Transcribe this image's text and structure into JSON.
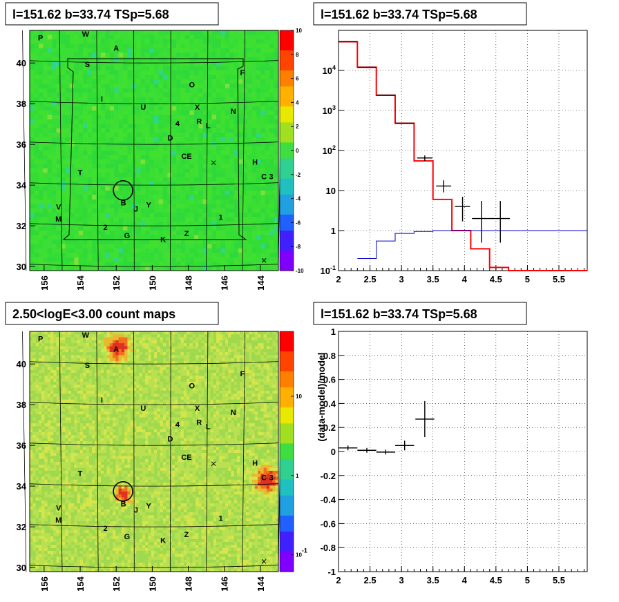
{
  "panels": {
    "tl": {
      "title": "l=151.62 b=33.74 TSp=5.68"
    },
    "tr": {
      "title": "l=151.62 b=33.74 TSp=5.68"
    },
    "bl": {
      "title": "2.50<logE<3.00 count maps"
    },
    "br": {
      "title": "l=151.62 b=33.74 TSp=5.68"
    }
  },
  "colors": {
    "map_green": "#33dd33",
    "map_yellow": "#d6e64a",
    "red": "#ff0000",
    "blue": "#0000cc",
    "black": "#000000"
  },
  "chart_data": [
    {
      "id": "tl",
      "type": "heatmap",
      "xlim": [
        156.8,
        143.0
      ],
      "ylim": [
        29.8,
        41.6
      ],
      "xticks": [
        "156",
        "154",
        "152",
        "150",
        "148",
        "146",
        "144"
      ],
      "yticks": [
        "30",
        "32",
        "34",
        "36",
        "38",
        "40"
      ],
      "colorbar": {
        "ticks": [
          "10",
          "8",
          "6",
          "4",
          "2",
          "0",
          "-2",
          "-4",
          "-6",
          "-8",
          "-10"
        ],
        "scale": "linear",
        "range": [
          -10,
          10
        ]
      },
      "labels": [
        {
          "t": "P",
          "l": 156.2,
          "b": 41.1
        },
        {
          "t": "W",
          "l": 153.7,
          "b": 41.3
        },
        {
          "t": "A",
          "l": 152.0,
          "b": 40.6
        },
        {
          "t": "S",
          "l": 153.6,
          "b": 39.8
        },
        {
          "t": "F",
          "l": 145.0,
          "b": 39.4
        },
        {
          "t": "O",
          "l": 147.8,
          "b": 38.8
        },
        {
          "t": "I",
          "l": 152.8,
          "b": 38.1
        },
        {
          "t": "U",
          "l": 150.5,
          "b": 37.7
        },
        {
          "t": "X",
          "l": 147.5,
          "b": 37.7
        },
        {
          "t": "N",
          "l": 145.5,
          "b": 37.5
        },
        {
          "t": "4",
          "l": 148.6,
          "b": 36.9
        },
        {
          "t": "R",
          "l": 147.4,
          "b": 37.0
        },
        {
          "t": "L",
          "l": 146.9,
          "b": 36.8
        },
        {
          "t": "D",
          "l": 149.0,
          "b": 36.2
        },
        {
          "t": "CE",
          "l": 148.1,
          "b": 35.3
        },
        {
          "t": "H",
          "l": 144.3,
          "b": 35.0
        },
        {
          "t": "T",
          "l": 154.0,
          "b": 34.5
        },
        {
          "t": "C",
          "l": 143.8,
          "b": 34.3
        },
        {
          "t": "3",
          "l": 143.4,
          "b": 34.3
        },
        {
          "t": "B",
          "l": 151.6,
          "b": 33.0
        },
        {
          "t": "J",
          "l": 150.9,
          "b": 32.7
        },
        {
          "t": "Y",
          "l": 150.2,
          "b": 32.9
        },
        {
          "t": "V",
          "l": 155.2,
          "b": 32.8
        },
        {
          "t": "M",
          "l": 155.2,
          "b": 32.2
        },
        {
          "t": "1",
          "l": 146.2,
          "b": 32.3
        },
        {
          "t": "2",
          "l": 152.6,
          "b": 31.8
        },
        {
          "t": "G",
          "l": 151.4,
          "b": 31.4
        },
        {
          "t": "K",
          "l": 149.4,
          "b": 31.2
        },
        {
          "t": "Z",
          "l": 148.1,
          "b": 31.5
        }
      ]
    },
    {
      "id": "tr",
      "type": "line",
      "yscale": "log",
      "xlim": [
        2.0,
        5.95
      ],
      "ylim": [
        0.1,
        100000
      ],
      "xticks": [
        "2",
        "2.5",
        "3",
        "3.5",
        "4",
        "4.5",
        "5",
        "5.5"
      ],
      "yticks": [
        "10<sup>-1</sup>",
        "1",
        "10",
        "10<sup>2</sup>",
        "10<sup>3</sup>",
        "10<sup>4</sup>"
      ],
      "grid": true,
      "series": [
        {
          "style": "step",
          "color": "#ff0000",
          "edges": [
            2.0,
            2.3,
            2.6,
            2.9,
            3.2,
            3.5,
            3.8,
            4.1,
            4.4,
            4.7,
            5.95
          ],
          "values": [
            52000,
            12000,
            2400,
            480,
            55,
            6,
            1.0,
            0.35,
            0.12,
            0.1
          ]
        },
        {
          "style": "step",
          "color": "#0000cc",
          "edges": [
            2.3,
            2.6,
            2.9,
            3.2,
            3.5,
            3.8,
            5.95
          ],
          "values": [
            0.2,
            0.55,
            0.85,
            0.95,
            1.0,
            1.0
          ]
        },
        {
          "style": "errorbar",
          "color": "#000000",
          "x": [
            2.15,
            2.45,
            2.75,
            3.05,
            3.37,
            3.67,
            3.97,
            4.27,
            4.57
          ],
          "xerr": [
            0.15,
            0.15,
            0.15,
            0.15,
            0.12,
            0.12,
            0.12,
            0.15,
            0.15
          ],
          "y": [
            52000,
            12000,
            2400,
            480,
            65,
            13,
            4,
            2,
            2
          ],
          "ylo": [
            52000,
            12000,
            2400,
            480,
            55,
            9,
            1.7,
            0.5,
            0.5
          ],
          "yhi": [
            52000,
            12000,
            2400,
            480,
            75,
            18,
            7,
            5.5,
            5.5
          ]
        }
      ]
    },
    {
      "id": "bl",
      "type": "heatmap",
      "xlim": [
        156.8,
        143.0
      ],
      "ylim": [
        29.8,
        41.6
      ],
      "xticks": [
        "156",
        "154",
        "152",
        "150",
        "148",
        "146",
        "144"
      ],
      "yticks": [
        "30",
        "32",
        "34",
        "36",
        "38",
        "40"
      ],
      "colorbar": {
        "ticks": [
          "10",
          "1",
          "10<sup>-1</sup>"
        ],
        "scale": "log"
      },
      "sources": [
        {
          "l": 151.9,
          "b": 40.8,
          "s": 3
        },
        {
          "l": 143.6,
          "b": 34.3,
          "s": 3.2
        },
        {
          "l": 151.6,
          "b": 33.6,
          "s": 2
        }
      ],
      "labels": [
        {
          "t": "P",
          "l": 156.2,
          "b": 41.1
        },
        {
          "t": "W",
          "l": 153.7,
          "b": 41.3
        },
        {
          "t": "A",
          "l": 152.0,
          "b": 40.6
        },
        {
          "t": "S",
          "l": 153.6,
          "b": 39.8
        },
        {
          "t": "F",
          "l": 145.0,
          "b": 39.4
        },
        {
          "t": "O",
          "l": 147.8,
          "b": 38.8
        },
        {
          "t": "I",
          "l": 152.8,
          "b": 38.1
        },
        {
          "t": "U",
          "l": 150.5,
          "b": 37.7
        },
        {
          "t": "X",
          "l": 147.5,
          "b": 37.7
        },
        {
          "t": "N",
          "l": 145.5,
          "b": 37.5
        },
        {
          "t": "4",
          "l": 148.6,
          "b": 36.9
        },
        {
          "t": "R",
          "l": 147.4,
          "b": 37.0
        },
        {
          "t": "L",
          "l": 146.9,
          "b": 36.8
        },
        {
          "t": "D",
          "l": 149.0,
          "b": 36.2
        },
        {
          "t": "CE",
          "l": 148.1,
          "b": 35.3
        },
        {
          "t": "H",
          "l": 144.3,
          "b": 35.0
        },
        {
          "t": "T",
          "l": 154.0,
          "b": 34.5
        },
        {
          "t": "C",
          "l": 143.8,
          "b": 34.3
        },
        {
          "t": "3",
          "l": 143.4,
          "b": 34.3
        },
        {
          "t": "B",
          "l": 151.6,
          "b": 33.0
        },
        {
          "t": "J",
          "l": 150.9,
          "b": 32.7
        },
        {
          "t": "Y",
          "l": 150.2,
          "b": 32.9
        },
        {
          "t": "V",
          "l": 155.2,
          "b": 32.8
        },
        {
          "t": "M",
          "l": 155.2,
          "b": 32.2
        },
        {
          "t": "1",
          "l": 146.2,
          "b": 32.3
        },
        {
          "t": "2",
          "l": 152.6,
          "b": 31.8
        },
        {
          "t": "G",
          "l": 151.4,
          "b": 31.4
        },
        {
          "t": "K",
          "l": 149.4,
          "b": 31.2
        },
        {
          "t": "Z",
          "l": 148.1,
          "b": 31.5
        }
      ]
    },
    {
      "id": "br",
      "type": "scatter",
      "xlim": [
        2.0,
        5.95
      ],
      "ylim": [
        -1,
        1
      ],
      "xticks": [
        "2",
        "2.5",
        "3",
        "3.5",
        "4",
        "4.5",
        "5",
        "5.5"
      ],
      "yticks": [
        "-1",
        "-0.8",
        "-0.6",
        "-0.4",
        "-0.2",
        "0",
        "0.2",
        "0.4",
        "0.6",
        "0.8",
        "1"
      ],
      "ylabel": "(data-model)/model",
      "grid": true,
      "series": [
        {
          "style": "errorbar",
          "color": "#000000",
          "x": [
            2.15,
            2.45,
            2.75,
            3.05,
            3.37
          ],
          "xerr": [
            0.15,
            0.15,
            0.15,
            0.15,
            0.15
          ],
          "y": [
            0.03,
            0.01,
            -0.005,
            0.05,
            0.27
          ],
          "yerr": [
            0.02,
            0.02,
            0.02,
            0.04,
            0.15
          ]
        }
      ]
    }
  ]
}
